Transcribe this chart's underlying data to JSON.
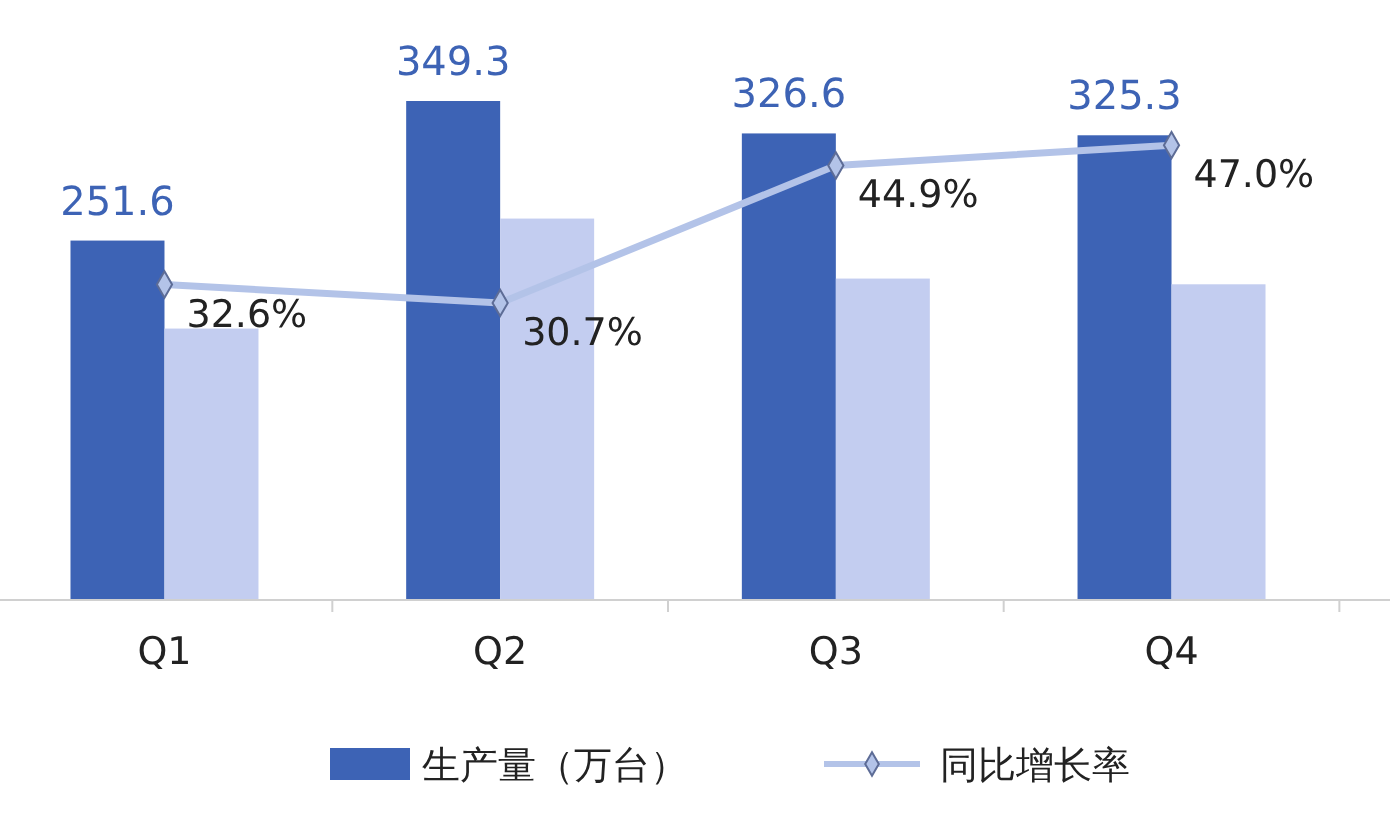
{
  "chart_data": {
    "type": "bar",
    "categories": [
      "Q1",
      "Q2",
      "Q3",
      "Q4"
    ],
    "series": [
      {
        "name": "生产量（万台）",
        "color": "#3d63b5",
        "values": [
          251.6,
          349.3,
          326.6,
          325.3
        ],
        "value_labels": [
          "251.6",
          "349.3",
          "326.6",
          "325.3"
        ]
      },
      {
        "color": "#c3cdf0",
        "values": [
          190,
          267,
          225,
          221
        ]
      },
      {
        "name": "同比增长率",
        "type": "line",
        "axis": "y2",
        "color": "#b3c3e8",
        "values": [
          32.6,
          30.7,
          44.9,
          47.0
        ],
        "value_labels": [
          "32.6%",
          "30.7%",
          "44.9%",
          "47.0%"
        ],
        "marker": "diamond"
      }
    ],
    "ylim": [
      0,
      420
    ],
    "y2lim": [
      0,
      62
    ],
    "tick_labels": "x",
    "legend": "bottom"
  }
}
